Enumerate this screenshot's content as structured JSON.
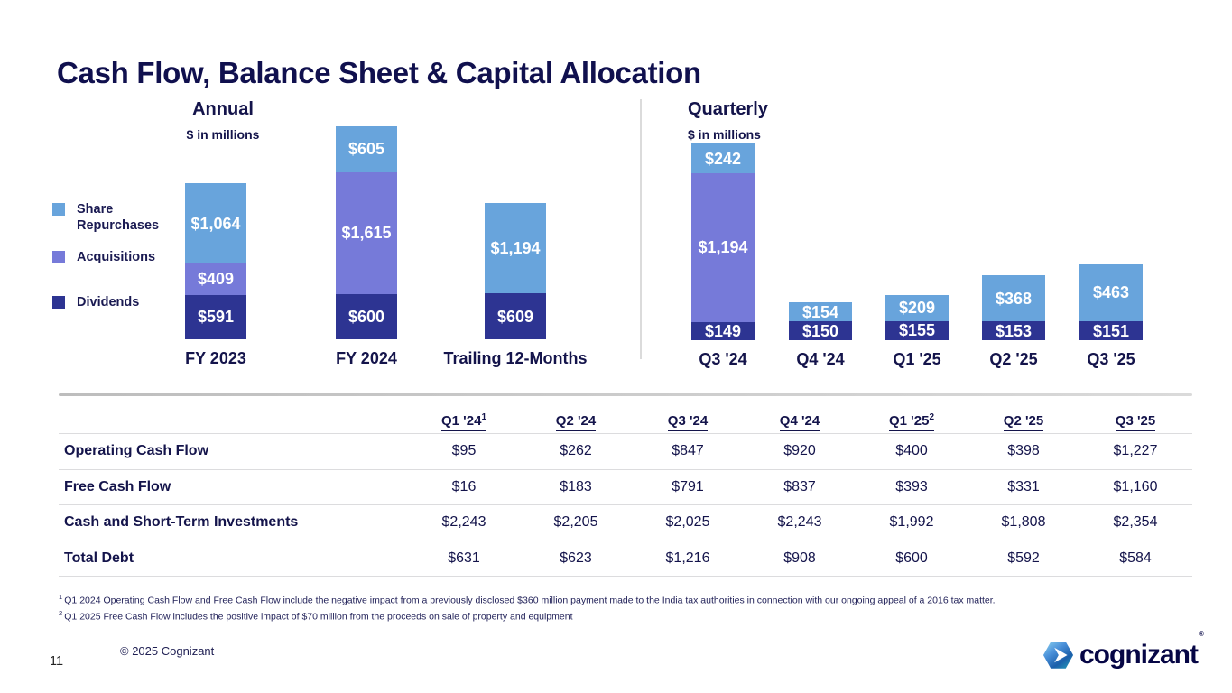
{
  "slide": {
    "title": "Cash Flow, Balance Sheet & Capital Allocation",
    "page_number": "11",
    "copyright": "© 2025 Cognizant",
    "logo": {
      "text": "cognizant",
      "registered_mark": "®"
    }
  },
  "colors": {
    "navy_text": "#14144B",
    "dividends": "#2D3492",
    "acquisitions": "#767AD9",
    "share_repurchases": "#68A4DC",
    "divider_gray": "#DBDBDB"
  },
  "chart_data": [
    {
      "type": "bar",
      "stacked": true,
      "title": "Annual",
      "subtitle": "$ in millions",
      "categories": [
        "FY 2023",
        "FY 2024",
        "Trailing 12-Months"
      ],
      "series": [
        {
          "name": "Dividends",
          "color": "#2D3492",
          "values": [
            591,
            600,
            609
          ],
          "labels": [
            "$591",
            "$600",
            "$609"
          ]
        },
        {
          "name": "Acquisitions",
          "color": "#767AD9",
          "values": [
            409,
            1615,
            0
          ],
          "labels": [
            "$409",
            "$1,615",
            ""
          ]
        },
        {
          "name": "Share Repurchases",
          "color": "#68A4DC",
          "values": [
            1064,
            605,
            1194
          ],
          "labels": [
            "$1,064",
            "$605",
            "$1,194"
          ]
        }
      ],
      "legend_position": "left",
      "value_labels": "inside-white",
      "grid": false
    },
    {
      "type": "bar",
      "stacked": true,
      "title": "Quarterly",
      "subtitle": "$ in millions",
      "categories": [
        "Q3 '24",
        "Q4 '24",
        "Q1 '25",
        "Q2 '25",
        "Q3 '25"
      ],
      "series": [
        {
          "name": "Dividends",
          "color": "#2D3492",
          "values": [
            149,
            150,
            155,
            153,
            151
          ],
          "labels": [
            "$149",
            "$150",
            "$155",
            "$153",
            "$151"
          ]
        },
        {
          "name": "Acquisitions",
          "color": "#767AD9",
          "values": [
            1194,
            0,
            0,
            0,
            0
          ],
          "labels": [
            "$1,194",
            "",
            "",
            "",
            ""
          ]
        },
        {
          "name": "Share Repurchases",
          "color": "#68A4DC",
          "values": [
            242,
            154,
            209,
            368,
            463
          ],
          "labels": [
            "$242",
            "$154",
            "$209",
            "$368",
            "$463"
          ]
        }
      ],
      "legend_position": "none",
      "value_labels": "inside-white",
      "grid": false
    }
  ],
  "table": {
    "columns": [
      {
        "label": "Q1 '24",
        "sup": "1"
      },
      {
        "label": "Q2 '24",
        "sup": ""
      },
      {
        "label": "Q3 '24",
        "sup": ""
      },
      {
        "label": "Q4 '24",
        "sup": ""
      },
      {
        "label": "Q1 '25",
        "sup": "2"
      },
      {
        "label": "Q2 '25",
        "sup": ""
      },
      {
        "label": "Q3 '25",
        "sup": ""
      }
    ],
    "rows": [
      {
        "label": "Operating Cash Flow",
        "values": [
          "$95",
          "$262",
          "$847",
          "$920",
          "$400",
          "$398",
          "$1,227"
        ]
      },
      {
        "label": "Free Cash Flow",
        "values": [
          "$16",
          "$183",
          "$791",
          "$837",
          "$393",
          "$331",
          "$1,160"
        ]
      },
      {
        "label": "Cash and Short-Term Investments",
        "values": [
          "$2,243",
          "$2,205",
          "$2,025",
          "$2,243",
          "$1,992",
          "$1,808",
          "$2,354"
        ]
      },
      {
        "label": "Total Debt",
        "values": [
          "$631",
          "$623",
          "$1,216",
          "$908",
          "$600",
          "$592",
          "$584"
        ]
      }
    ]
  },
  "footnotes": [
    {
      "marker": "1",
      "text": "Q1 2024 Operating Cash Flow and Free Cash Flow include the negative impact from a previously disclosed $360 million payment made to the India tax authorities in connection with our ongoing appeal of a 2016 tax matter."
    },
    {
      "marker": "2",
      "text": "Q1 2025 Free Cash Flow includes the positive impact of $70 million from the proceeds on sale of property and equipment"
    }
  ]
}
